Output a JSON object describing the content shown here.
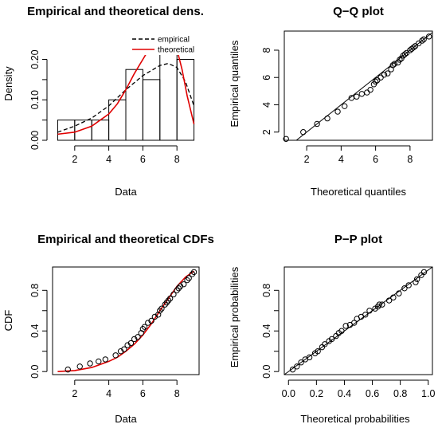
{
  "colors": {
    "theoretical": "#e00000",
    "empirical": "#000000",
    "axis": "#000000"
  },
  "chart_data": [
    {
      "id": "density",
      "type": "bar",
      "title": "Empirical and theoretical dens.",
      "xlabel": "Data",
      "ylabel": "Density",
      "xlim": [
        0.7,
        9.3
      ],
      "ylim": [
        0,
        0.27
      ],
      "xticks": [
        2,
        4,
        6,
        8
      ],
      "yticks": [
        0.0,
        0.1,
        0.2
      ],
      "ytick_labels": [
        "0.00",
        "0.10",
        "0.20"
      ],
      "yticks_minor": [
        0.05,
        0.15
      ],
      "ytick_minor_labels": [
        "",
        ""
      ],
      "histogram": {
        "bin_edges": [
          1,
          2,
          3,
          4,
          5,
          6,
          7,
          8,
          9
        ],
        "density": [
          0.05,
          0.05,
          0.05,
          0.1,
          0.175,
          0.15,
          0.225,
          0.2
        ]
      },
      "legend": {
        "position": "top-right",
        "entries": [
          "empirical",
          "theoretical"
        ]
      },
      "series": [
        {
          "name": "empirical",
          "style": "dashed",
          "x": [
            1,
            2,
            3,
            4,
            5,
            6,
            7,
            7.5,
            8,
            8.5,
            9
          ],
          "y": [
            0.02,
            0.035,
            0.055,
            0.085,
            0.125,
            0.16,
            0.185,
            0.19,
            0.18,
            0.145,
            0.085
          ]
        },
        {
          "name": "theoretical",
          "style": "solid",
          "x": [
            1,
            2,
            3,
            4,
            4.5,
            5,
            5.5,
            6,
            6.5,
            7,
            7.5,
            7.8,
            8,
            8.3,
            8.6,
            9
          ],
          "y": [
            0.015,
            0.02,
            0.035,
            0.065,
            0.09,
            0.125,
            0.165,
            0.2,
            0.235,
            0.255,
            0.26,
            0.25,
            0.225,
            0.175,
            0.11,
            0.04
          ]
        }
      ]
    },
    {
      "id": "qq",
      "type": "scatter",
      "title": "Q−Q plot",
      "xlabel": "Theoretical quantiles",
      "ylabel": "Empirical quantiles",
      "xlim": [
        0.7,
        9.3
      ],
      "ylim": [
        1.4,
        9.4
      ],
      "xticks": [
        2,
        4,
        6,
        8
      ],
      "yticks": [
        2,
        4,
        6,
        8
      ],
      "reference_line": {
        "x": [
          1.4,
          9.3
        ],
        "y": [
          1.4,
          9.3
        ]
      },
      "x": [
        0.8,
        1.8,
        2.6,
        3.2,
        3.8,
        4.2,
        4.6,
        4.9,
        5.2,
        5.5,
        5.7,
        5.9,
        6.0,
        6.1,
        6.3,
        6.5,
        6.7,
        6.9,
        7.0,
        7.1,
        7.3,
        7.4,
        7.5,
        7.6,
        7.7,
        7.8,
        8.0,
        8.1,
        8.2,
        8.3,
        8.5,
        8.7,
        8.8,
        9.1
      ],
      "y": [
        1.5,
        2.0,
        2.6,
        3.0,
        3.5,
        3.9,
        4.5,
        4.6,
        4.8,
        4.9,
        5.1,
        5.5,
        5.7,
        5.8,
        6.0,
        6.2,
        6.3,
        6.6,
        6.9,
        7.0,
        7.1,
        7.3,
        7.4,
        7.6,
        7.7,
        7.8,
        8.0,
        8.1,
        8.2,
        8.3,
        8.5,
        8.7,
        8.8,
        9.0
      ]
    },
    {
      "id": "cdf",
      "type": "line",
      "title": "Empirical and theoretical CDFs",
      "xlabel": "Data",
      "ylabel": "CDF",
      "xlim": [
        0.7,
        9.3
      ],
      "ylim": [
        -0.03,
        1.03
      ],
      "xticks": [
        2,
        4,
        6,
        8
      ],
      "yticks": [
        0.0,
        0.4,
        0.8
      ],
      "ytick_labels": [
        "0.0",
        "0.4",
        "0.8"
      ],
      "yticks_minor": [
        0.2,
        0.6
      ],
      "ytick_minor_labels": [
        "",
        ""
      ],
      "points": {
        "x": [
          1.6,
          2.3,
          2.9,
          3.4,
          3.8,
          4.4,
          4.7,
          4.9,
          5.1,
          5.3,
          5.5,
          5.7,
          5.9,
          6.0,
          6.1,
          6.3,
          6.5,
          6.7,
          6.9,
          7.0,
          7.1,
          7.3,
          7.4,
          7.5,
          7.6,
          7.8,
          8.0,
          8.1,
          8.2,
          8.4,
          8.6,
          8.7,
          8.9,
          9.0
        ],
        "y": [
          0.02,
          0.05,
          0.08,
          0.1,
          0.12,
          0.16,
          0.2,
          0.22,
          0.26,
          0.28,
          0.32,
          0.34,
          0.38,
          0.42,
          0.44,
          0.48,
          0.5,
          0.54,
          0.56,
          0.6,
          0.62,
          0.66,
          0.68,
          0.7,
          0.72,
          0.76,
          0.8,
          0.82,
          0.84,
          0.86,
          0.9,
          0.92,
          0.96,
          0.98
        ]
      },
      "series": [
        {
          "name": "theoretical",
          "x": [
            1,
            2,
            3,
            4,
            4.5,
            5,
            5.5,
            6,
            6.5,
            7,
            7.5,
            8,
            8.5,
            9
          ],
          "y": [
            0.0,
            0.01,
            0.04,
            0.1,
            0.14,
            0.2,
            0.27,
            0.36,
            0.47,
            0.6,
            0.72,
            0.84,
            0.93,
            0.99
          ]
        }
      ]
    },
    {
      "id": "pp",
      "type": "scatter",
      "title": "P−P plot",
      "xlabel": "Theoretical probabilities",
      "ylabel": "Empirical probabilities",
      "xlim": [
        -0.03,
        1.03
      ],
      "ylim": [
        -0.03,
        1.03
      ],
      "xticks": [
        0.0,
        0.2,
        0.4,
        0.6,
        0.8,
        1.0
      ],
      "xtick_labels": [
        "0.0",
        "0.2",
        "0.4",
        "0.6",
        "0.8",
        "1.0"
      ],
      "yticks": [
        0.0,
        0.4,
        0.8
      ],
      "ytick_labels": [
        "0.0",
        "0.4",
        "0.8"
      ],
      "yticks_minor": [
        0.2,
        0.6
      ],
      "ytick_minor_labels": [
        "",
        ""
      ],
      "reference_line": {
        "x": [
          0,
          1
        ],
        "y": [
          0,
          1
        ]
      },
      "x": [
        0.03,
        0.06,
        0.09,
        0.12,
        0.15,
        0.19,
        0.21,
        0.24,
        0.26,
        0.29,
        0.31,
        0.34,
        0.36,
        0.38,
        0.41,
        0.44,
        0.47,
        0.49,
        0.52,
        0.55,
        0.58,
        0.62,
        0.64,
        0.65,
        0.67,
        0.72,
        0.75,
        0.79,
        0.83,
        0.86,
        0.91,
        0.92,
        0.95,
        0.97
      ],
      "y": [
        0.02,
        0.05,
        0.09,
        0.12,
        0.14,
        0.18,
        0.2,
        0.24,
        0.27,
        0.3,
        0.32,
        0.35,
        0.38,
        0.4,
        0.45,
        0.46,
        0.48,
        0.52,
        0.54,
        0.56,
        0.6,
        0.62,
        0.64,
        0.66,
        0.66,
        0.7,
        0.73,
        0.77,
        0.82,
        0.85,
        0.88,
        0.91,
        0.95,
        0.98
      ]
    }
  ]
}
